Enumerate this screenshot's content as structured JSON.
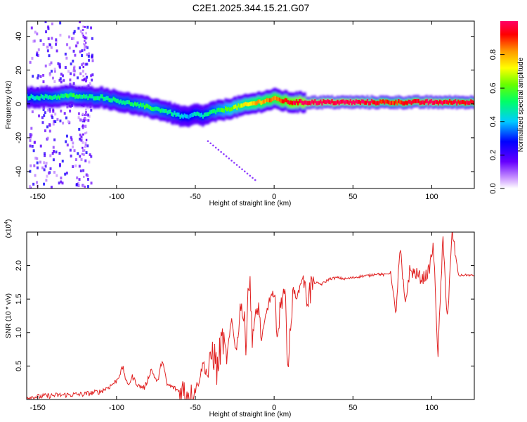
{
  "title": "C2E1.2025.344.15.21.G07",
  "chart_data": [
    {
      "type": "heatmap",
      "name": "spectrogram",
      "xlabel": "Height of straight line (km)",
      "ylabel": "Frequency (Hz)",
      "xlim": [
        -157,
        127
      ],
      "ylim": [
        -50,
        49
      ],
      "x_ticks": [
        -150,
        -100,
        -50,
        0,
        50,
        100
      ],
      "y_ticks": [
        40,
        20,
        0,
        -20,
        -40
      ],
      "colorbar": {
        "label": "Normalized spectral amplitude",
        "range": [
          0,
          1
        ],
        "ticks": [
          0.0,
          0.2,
          0.4,
          0.6,
          0.8
        ],
        "tick_labels": [
          "0.0",
          "0.2",
          "0.4",
          "0.6",
          "0.8"
        ]
      },
      "ridge": {
        "description": "dominant-frequency track",
        "x": [
          -157,
          -140,
          -130,
          -120,
          -110,
          -100,
          -90,
          -80,
          -70,
          -60,
          -55,
          -50,
          -45,
          -40,
          -35,
          -30,
          -20,
          -10,
          0,
          5,
          10,
          20,
          30,
          50,
          75,
          90,
          100,
          110,
          127
        ],
        "y": [
          4,
          4,
          5,
          4,
          4,
          2,
          0,
          -2,
          -4,
          -7,
          -8,
          -6,
          -7,
          -5,
          -4,
          -3,
          -1,
          1,
          3,
          2,
          1,
          1,
          1,
          1,
          1,
          1,
          1,
          1,
          1
        ],
        "amplitude": [
          0.45,
          0.5,
          0.55,
          0.5,
          0.5,
          0.5,
          0.5,
          0.55,
          0.5,
          0.45,
          0.4,
          0.45,
          0.45,
          0.5,
          0.55,
          0.6,
          0.7,
          0.8,
          0.85,
          0.9,
          0.95,
          1.0,
          1.0,
          1.0,
          0.9,
          0.95,
          1.0,
          0.95,
          0.95
        ]
      },
      "diagonal_streak": {
        "x": [
          -42,
          -12
        ],
        "y": [
          -22,
          -45
        ]
      }
    },
    {
      "type": "line",
      "name": "snr",
      "xlabel": "Height of straight line (km)",
      "ylabel": "SNR (10 * v/v)",
      "y_multiplier": "(x10",
      "y_multiplier_exp": "4",
      "y_multiplier_close": ")",
      "xlim": [
        -157,
        127
      ],
      "ylim": [
        0,
        2.5
      ],
      "x_ticks": [
        -150,
        -100,
        -50,
        0,
        50,
        100
      ],
      "y_ticks": [
        0.5,
        1.0,
        1.5,
        2.0
      ],
      "y_tick_labels": [
        "0.5",
        "1.0",
        "1.5",
        "2.0"
      ],
      "series": [
        {
          "name": "SNR",
          "color": "#e02020",
          "x": [
            -157,
            -140,
            -130,
            -120,
            -110,
            -104,
            -100,
            -96,
            -93,
            -90,
            -86,
            -82,
            -78,
            -74,
            -71,
            -68,
            -64,
            -60,
            -56,
            -52,
            -48,
            -45,
            -42,
            -39,
            -36,
            -33,
            -30,
            -27,
            -24,
            -21,
            -18,
            -16,
            -14,
            -12,
            -10,
            -8,
            -5,
            -2,
            0,
            3,
            6,
            9,
            12,
            15,
            18,
            21,
            25,
            30,
            35,
            40,
            45,
            50,
            55,
            60,
            65,
            70,
            74,
            77,
            80,
            83,
            86,
            90,
            94,
            98,
            101,
            104,
            107,
            110,
            113,
            117,
            121,
            127
          ],
          "y": [
            0.03,
            0.06,
            0.07,
            0.08,
            0.12,
            0.2,
            0.28,
            0.48,
            0.2,
            0.34,
            0.2,
            0.18,
            0.45,
            0.25,
            0.6,
            0.22,
            0.18,
            0.12,
            0.1,
            0.07,
            0.25,
            0.55,
            0.35,
            0.75,
            0.42,
            0.95,
            0.6,
            1.2,
            0.7,
            1.5,
            0.9,
            1.9,
            1.05,
            1.1,
            1.45,
            0.85,
            1.3,
            1.55,
            1.45,
            1.0,
            1.85,
            0.55,
            1.6,
            1.55,
            1.85,
            1.5,
            1.75,
            1.72,
            1.8,
            1.82,
            1.8,
            1.82,
            1.84,
            1.85,
            1.88,
            1.86,
            1.9,
            1.25,
            2.25,
            1.4,
            1.92,
            1.88,
            1.8,
            1.9,
            2.3,
            0.65,
            2.4,
            1.2,
            2.5,
            1.85,
            1.86,
            1.85
          ]
        }
      ]
    }
  ]
}
